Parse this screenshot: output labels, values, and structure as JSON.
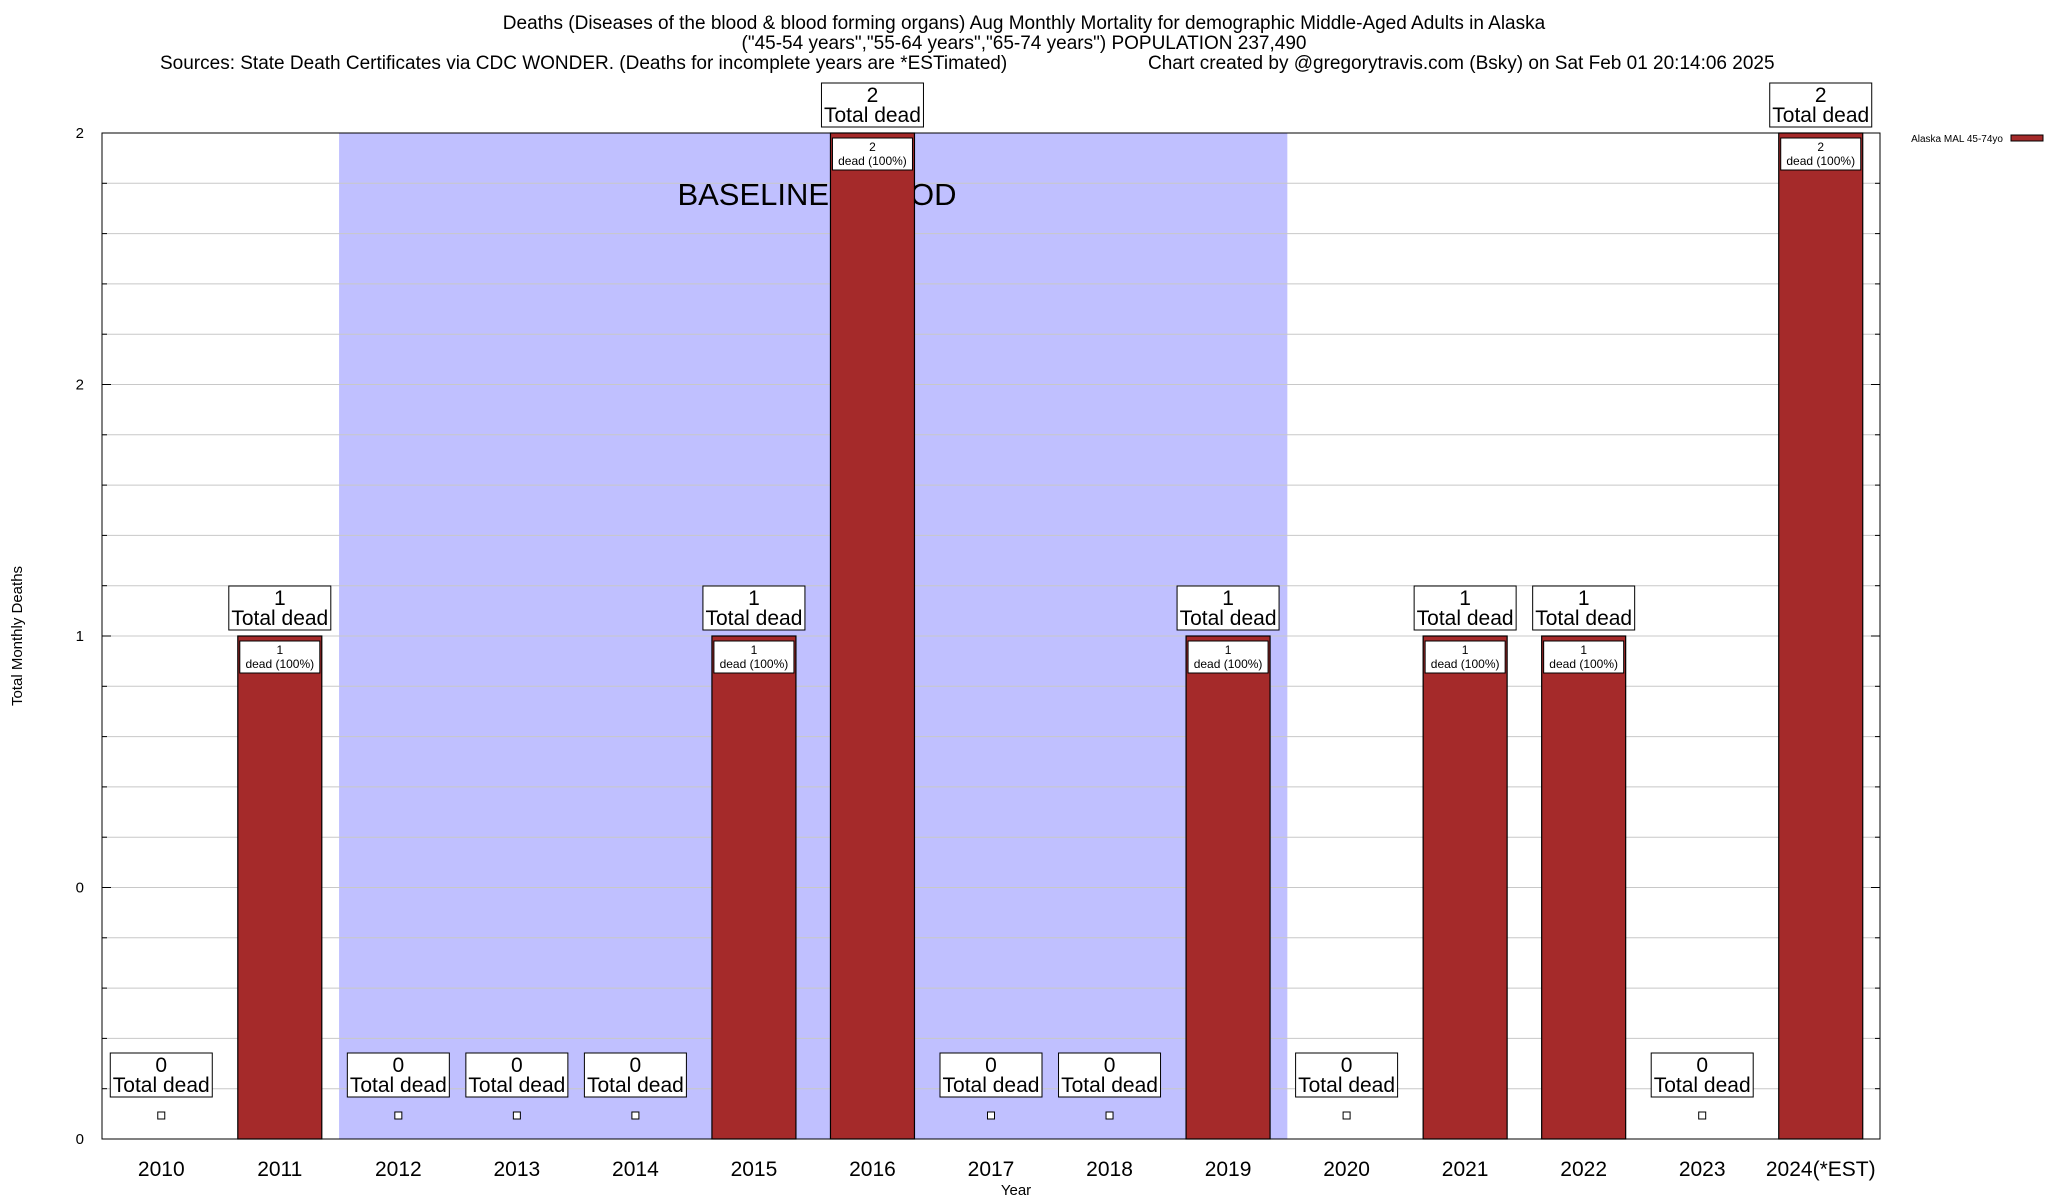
{
  "chart_data": {
    "type": "bar",
    "title": "Deaths (Diseases of the blood & blood forming organs) Aug Monthly Mortality for demographic Middle-Aged Adults in Alaska",
    "subtitle": "(\"45-54 years\",\"55-64 years\",\"65-74 years\") POPULATION 237,490",
    "sources": "Sources: State Death Certificates via CDC WONDER. (Deaths for incomplete years are *ESTimated)",
    "credit": "Chart created by @gregorytravis.com (Bsky) on Sat Feb 01 20:14:06 2025",
    "xlabel": "Year",
    "ylabel": "Total Monthly Deaths",
    "categories": [
      "2010",
      "2011",
      "2012",
      "2013",
      "2014",
      "2015",
      "2016",
      "2017",
      "2018",
      "2019",
      "2020",
      "2021",
      "2022",
      "2023",
      "2024(*EST)"
    ],
    "series": [
      {
        "name": "Alaska MAL 45-74yo",
        "values": [
          0,
          1,
          0,
          0,
          0,
          1,
          2,
          0,
          0,
          1,
          0,
          1,
          1,
          0,
          2
        ],
        "color": "#a52a2a"
      }
    ],
    "total_label": "Total dead",
    "segment_suffix": "dead (100%)",
    "ylim": [
      0,
      2
    ],
    "y_ticks": [
      {
        "value": 0,
        "label": "0"
      },
      {
        "value": 0.5,
        "label": "0"
      },
      {
        "value": 1,
        "label": "1"
      },
      {
        "value": 1.5,
        "label": "2"
      },
      {
        "value": 2,
        "label": "2"
      }
    ],
    "baseline_period": {
      "label": "BASELINE PERIOD",
      "from": "2012",
      "to": "2019",
      "color": "#c0c0ff"
    },
    "grid": true,
    "legend_position": "top-right"
  }
}
